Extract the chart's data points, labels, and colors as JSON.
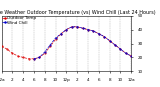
{
  "title": "Milwaukee Weather Outdoor Temperature (vs) Wind Chill (Last 24 Hours)",
  "title_fontsize": 3.5,
  "background_color": "#ffffff",
  "plot_bg_color": "#ffffff",
  "grid_color": "#aaaaaa",
  "temp_color": "#dd0000",
  "windchill_color": "#0000cc",
  "temp_x": [
    0,
    1,
    2,
    3,
    4,
    5,
    6,
    7,
    8,
    9,
    10,
    11,
    12,
    13,
    14,
    15,
    16,
    17,
    18,
    19,
    20,
    21,
    22,
    23,
    24
  ],
  "temp_y": [
    28,
    26,
    23,
    21,
    20,
    19,
    19,
    20,
    23,
    28,
    33,
    37,
    40,
    42,
    42,
    41,
    40,
    39,
    37,
    35,
    32,
    29,
    26,
    23,
    21
  ],
  "windchill_x": [
    6,
    7,
    8,
    9,
    10,
    11,
    12,
    13,
    14,
    15,
    16,
    17,
    18,
    19,
    20,
    21,
    22,
    23,
    24
  ],
  "windchill_y": [
    19,
    20,
    24,
    29,
    34,
    37,
    40,
    42,
    42,
    41,
    40,
    39,
    37,
    35,
    32,
    29,
    26,
    23,
    21
  ],
  "yticks_right": [
    50,
    40,
    30,
    20,
    10
  ],
  "xlim": [
    0,
    24
  ],
  "ylim": [
    10,
    50
  ],
  "tick_fontsize": 3.0,
  "legend_labels": [
    "Outdoor Temp",
    "Wind Chill"
  ],
  "legend_fontsize": 3.0,
  "xticks": [
    0,
    2,
    4,
    6,
    8,
    10,
    12,
    14,
    16,
    18,
    20,
    22,
    24
  ],
  "xtick_labels": [
    "12a",
    "2",
    "4",
    "6",
    "8",
    "10",
    "12p",
    "2",
    "4",
    "6",
    "8",
    "10",
    "12a"
  ],
  "vertical_grid_x": [
    0,
    2,
    4,
    6,
    8,
    10,
    12,
    14,
    16,
    18,
    20,
    22,
    24
  ]
}
